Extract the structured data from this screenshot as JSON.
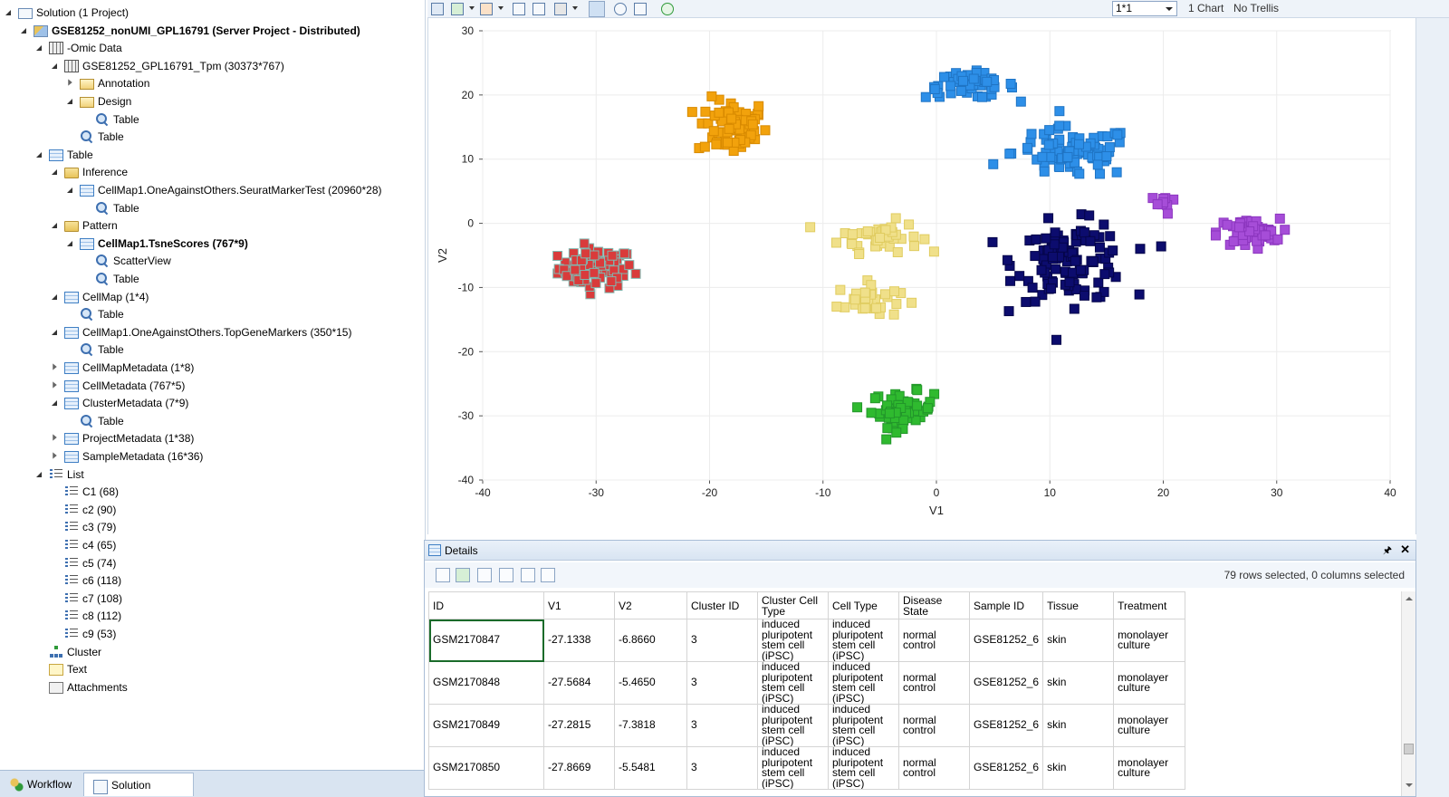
{
  "solution_tree": [
    {
      "label": "Solution (1 Project)",
      "level": 0,
      "expander": "open",
      "icon": "solution",
      "bold": false
    },
    {
      "label": "GSE81252_nonUMI_GPL16791 (Server Project - Distributed)",
      "level": 1,
      "expander": "open",
      "icon": "project",
      "bold": true
    },
    {
      "label": "-Omic Data",
      "level": 2,
      "expander": "open",
      "icon": "grid",
      "bold": false
    },
    {
      "label": "GSE81252_GPL16791_Tpm (30373*767)",
      "level": 3,
      "expander": "open",
      "icon": "grid",
      "bold": false
    },
    {
      "label": "Annotation",
      "level": 4,
      "expander": "closed",
      "icon": "folder-open",
      "bold": false
    },
    {
      "label": "Design",
      "level": 4,
      "expander": "open",
      "icon": "folder-open",
      "bold": false
    },
    {
      "label": "Table",
      "level": 5,
      "expander": "none",
      "icon": "view",
      "bold": false
    },
    {
      "label": "Table",
      "level": 4,
      "expander": "none",
      "icon": "view",
      "bold": false
    },
    {
      "label": "Table",
      "level": 2,
      "expander": "open",
      "icon": "table",
      "bold": false
    },
    {
      "label": "Inference",
      "level": 3,
      "expander": "open",
      "icon": "folder",
      "bold": false
    },
    {
      "label": "CellMap1.OneAgainstOthers.SeuratMarkerTest (20960*28)",
      "level": 4,
      "expander": "open",
      "icon": "table",
      "bold": false
    },
    {
      "label": "Table",
      "level": 5,
      "expander": "none",
      "icon": "view",
      "bold": false
    },
    {
      "label": "Pattern",
      "level": 3,
      "expander": "open",
      "icon": "folder",
      "bold": false
    },
    {
      "label": "CellMap1.TsneScores (767*9)",
      "level": 4,
      "expander": "open",
      "icon": "table",
      "bold": true
    },
    {
      "label": "ScatterView",
      "level": 5,
      "expander": "none",
      "icon": "view",
      "bold": false
    },
    {
      "label": "Table",
      "level": 5,
      "expander": "none",
      "icon": "view",
      "bold": false
    },
    {
      "label": "CellMap (1*4)",
      "level": 3,
      "expander": "open",
      "icon": "table",
      "bold": false
    },
    {
      "label": "Table",
      "level": 4,
      "expander": "none",
      "icon": "view",
      "bold": false
    },
    {
      "label": "CellMap1.OneAgainstOthers.TopGeneMarkers (350*15)",
      "level": 3,
      "expander": "open",
      "icon": "table",
      "bold": false
    },
    {
      "label": "Table",
      "level": 4,
      "expander": "none",
      "icon": "view",
      "bold": false
    },
    {
      "label": "CellMapMetadata (1*8)",
      "level": 3,
      "expander": "closed",
      "icon": "table",
      "bold": false
    },
    {
      "label": "CellMetadata (767*5)",
      "level": 3,
      "expander": "closed",
      "icon": "table",
      "bold": false
    },
    {
      "label": "ClusterMetadata (7*9)",
      "level": 3,
      "expander": "open",
      "icon": "table",
      "bold": false
    },
    {
      "label": "Table",
      "level": 4,
      "expander": "none",
      "icon": "view",
      "bold": false
    },
    {
      "label": "ProjectMetadata (1*38)",
      "level": 3,
      "expander": "closed",
      "icon": "table",
      "bold": false
    },
    {
      "label": "SampleMetadata (16*36)",
      "level": 3,
      "expander": "closed",
      "icon": "table",
      "bold": false
    },
    {
      "label": "List",
      "level": 2,
      "expander": "open",
      "icon": "list",
      "bold": false
    },
    {
      "label": "C1 (68)",
      "level": 3,
      "expander": "none",
      "icon": "list",
      "bold": false
    },
    {
      "label": "c2 (90)",
      "level": 3,
      "expander": "none",
      "icon": "list",
      "bold": false
    },
    {
      "label": "c3 (79)",
      "level": 3,
      "expander": "none",
      "icon": "list",
      "bold": false
    },
    {
      "label": "c4 (65)",
      "level": 3,
      "expander": "none",
      "icon": "list",
      "bold": false
    },
    {
      "label": "c5 (74)",
      "level": 3,
      "expander": "none",
      "icon": "list",
      "bold": false
    },
    {
      "label": "c6 (118)",
      "level": 3,
      "expander": "none",
      "icon": "list",
      "bold": false
    },
    {
      "label": "c7 (108)",
      "level": 3,
      "expander": "none",
      "icon": "list",
      "bold": false
    },
    {
      "label": "c8 (112)",
      "level": 3,
      "expander": "none",
      "icon": "list",
      "bold": false
    },
    {
      "label": "c9 (53)",
      "level": 3,
      "expander": "none",
      "icon": "list",
      "bold": false
    },
    {
      "label": "Cluster",
      "level": 2,
      "expander": "none",
      "icon": "cluster",
      "bold": false
    },
    {
      "label": "Text",
      "level": 2,
      "expander": "none",
      "icon": "text",
      "bold": false
    },
    {
      "label": "Attachments",
      "level": 2,
      "expander": "none",
      "icon": "attach",
      "bold": false
    }
  ],
  "bottom_tabs": {
    "workflow": "Workflow",
    "solution_explorer": "Solution Explorer",
    "active": "solution_explorer"
  },
  "toolbar": {
    "zoom_value": "1*1",
    "chart_count": "1 Chart",
    "trellis": "No Trellis",
    "buttons": [
      "export-image-icon",
      "export-data-icon",
      "export-office-icon",
      "copy-icon",
      "paste-icon",
      "print-icon",
      "pointer-icon",
      "zoom-tool-icon",
      "fit-view-icon",
      "refresh-icon"
    ]
  },
  "chart_data": {
    "type": "scatter",
    "xlabel": "V1",
    "ylabel": "V2",
    "xlim": [
      -40,
      40
    ],
    "ylim": [
      -40,
      30
    ],
    "xticks": [
      -40,
      -30,
      -20,
      -10,
      0,
      10,
      20,
      30,
      40
    ],
    "yticks": [
      30,
      20,
      10,
      0,
      -10,
      -20,
      -30,
      -40
    ],
    "grid": true,
    "marker": "square",
    "clusters": [
      {
        "color": "#d93b3b",
        "edge": "#7fb8b0",
        "center": [
          -30,
          -7
        ],
        "spread": [
          3.0,
          2.8
        ],
        "n": 80
      },
      {
        "color": "#f2a20c",
        "edge": "#d88a00",
        "center": [
          -18,
          15
        ],
        "spread": [
          2.8,
          4.0
        ],
        "n": 75
      },
      {
        "color": "#f0e08a",
        "edge": "#e0cc60",
        "center": [
          -5,
          -2
        ],
        "spread": [
          3.2,
          2.2
        ],
        "n": 45
      },
      {
        "color": "#f0e08a",
        "edge": "#e0cc60",
        "center": [
          -6,
          -12
        ],
        "spread": [
          2.5,
          2.5
        ],
        "n": 35
      },
      {
        "color": "#2fba2f",
        "edge": "#22962a",
        "center": [
          -3,
          -29
        ],
        "spread": [
          2.5,
          2.5
        ],
        "n": 55
      },
      {
        "color": "#2d8fe8",
        "edge": "#1f74c4",
        "center": [
          3,
          21.5
        ],
        "spread": [
          3.6,
          1.8
        ],
        "n": 50
      },
      {
        "color": "#2d8fe8",
        "edge": "#1f74c4",
        "center": [
          12,
          11
        ],
        "spread": [
          4.8,
          3.6
        ],
        "n": 90
      },
      {
        "color": "#0c0c6e",
        "edge": "#05054a",
        "center": [
          12,
          -6
        ],
        "spread": [
          4.5,
          5.5
        ],
        "n": 110
      },
      {
        "color": "#a64dd8",
        "edge": "#8c36bf",
        "center": [
          27.5,
          -1.5
        ],
        "spread": [
          2.5,
          2.0
        ],
        "n": 60
      },
      {
        "color": "#a64dd8",
        "edge": "#8c36bf",
        "center": [
          20,
          3
        ],
        "spread": [
          1.0,
          1.5
        ],
        "n": 10
      }
    ]
  },
  "details": {
    "title": "Details",
    "selection_status": "79 rows selected, 0 columns selected",
    "columns": [
      "ID",
      "V1",
      "V2",
      "Cluster ID",
      "Cluster Cell Type",
      "Cell Type",
      "Disease State",
      "Sample ID",
      "Tissue",
      "Treatment"
    ],
    "rows": [
      [
        "GSM2170847",
        "-27.1338",
        "-6.8660",
        "3",
        "induced pluripotent stem cell (iPSC)",
        "induced pluripotent stem cell (iPSC)",
        "normal control",
        "GSE81252_6",
        "skin",
        "monolayer culture"
      ],
      [
        "GSM2170848",
        "-27.5684",
        "-5.4650",
        "3",
        "induced pluripotent stem cell (iPSC)",
        "induced pluripotent stem cell (iPSC)",
        "normal control",
        "GSE81252_6",
        "skin",
        "monolayer culture"
      ],
      [
        "GSM2170849",
        "-27.2815",
        "-7.3818",
        "3",
        "induced pluripotent stem cell (iPSC)",
        "induced pluripotent stem cell (iPSC)",
        "normal control",
        "GSE81252_6",
        "skin",
        "monolayer culture"
      ],
      [
        "GSM2170850",
        "-27.8669",
        "-5.5481",
        "3",
        "induced pluripotent stem cell (iPSC)",
        "induced pluripotent stem cell (iPSC)",
        "normal control",
        "GSE81252_6",
        "skin",
        "monolayer culture"
      ]
    ]
  }
}
